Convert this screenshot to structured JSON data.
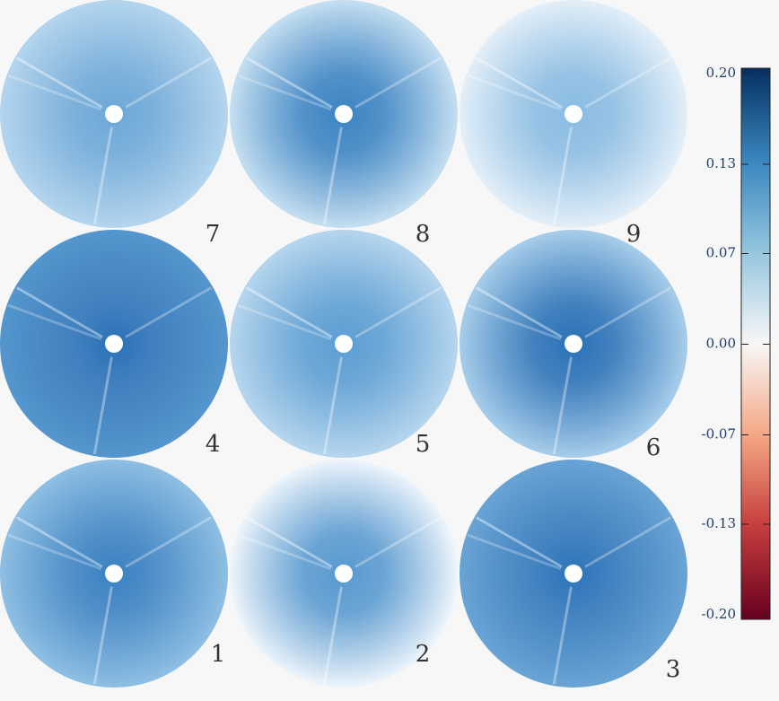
{
  "panels": [
    {
      "label": "7"
    },
    {
      "label": "8"
    },
    {
      "label": "9"
    },
    {
      "label": "4"
    },
    {
      "label": "5"
    },
    {
      "label": "6"
    },
    {
      "label": "1"
    },
    {
      "label": "2"
    },
    {
      "label": "3"
    }
  ],
  "colorbar": {
    "ylim": [
      -0.2,
      0.2
    ],
    "yticks": [
      {
        "value": 0.2,
        "label": "0.20"
      },
      {
        "value": 0.133,
        "label": "0.13"
      },
      {
        "value": 0.067,
        "label": "0.07"
      },
      {
        "value": 0,
        "label": "0.00"
      },
      {
        "value": -0.067,
        "label": "-0.07"
      },
      {
        "value": -0.133,
        "label": "-0.13"
      },
      {
        "value": -0.2,
        "label": "-0.20"
      }
    ]
  }
}
